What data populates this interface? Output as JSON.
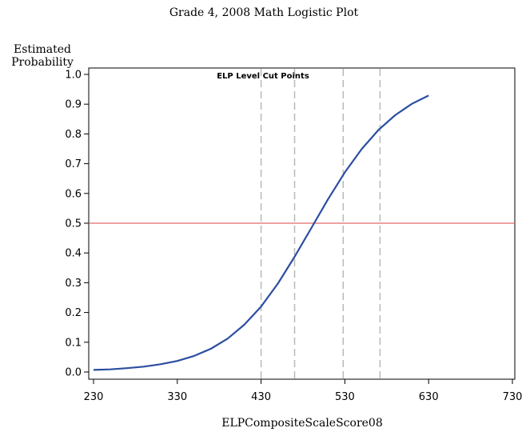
{
  "chart_data": {
    "type": "line",
    "title": "Grade 4, 2008 Math Logistic Plot",
    "xlabel": "ELPCompositeScaleScore08",
    "ylabel_lines": [
      "Estimated",
      "Probability"
    ],
    "xlim": [
      230,
      730
    ],
    "ylim": [
      0.0,
      1.0
    ],
    "x_ticks": [
      230,
      330,
      430,
      530,
      630,
      730
    ],
    "y_ticks": [
      "0.0",
      "0.1",
      "0.2",
      "0.3",
      "0.4",
      "0.5",
      "0.6",
      "0.7",
      "0.8",
      "0.9",
      "1.0"
    ],
    "grid": false,
    "series": [
      {
        "color": "#2b4ea0",
        "x": [
          230,
          250,
          270,
          290,
          310,
          330,
          350,
          370,
          390,
          410,
          430,
          450,
          470,
          490,
          510,
          530,
          550,
          570,
          590,
          610,
          630
        ],
        "y": [
          0.007,
          0.009,
          0.013,
          0.018,
          0.026,
          0.037,
          0.054,
          0.078,
          0.112,
          0.159,
          0.22,
          0.297,
          0.387,
          0.484,
          0.581,
          0.671,
          0.749,
          0.813,
          0.863,
          0.901,
          0.929
        ]
      }
    ],
    "reference_line": {
      "y": 0.5,
      "color": "#e06b6b"
    },
    "cut_points": {
      "label": "ELP Level Cut Points",
      "x": [
        430,
        470,
        528,
        572
      ],
      "color": "#b8b8b8"
    }
  }
}
